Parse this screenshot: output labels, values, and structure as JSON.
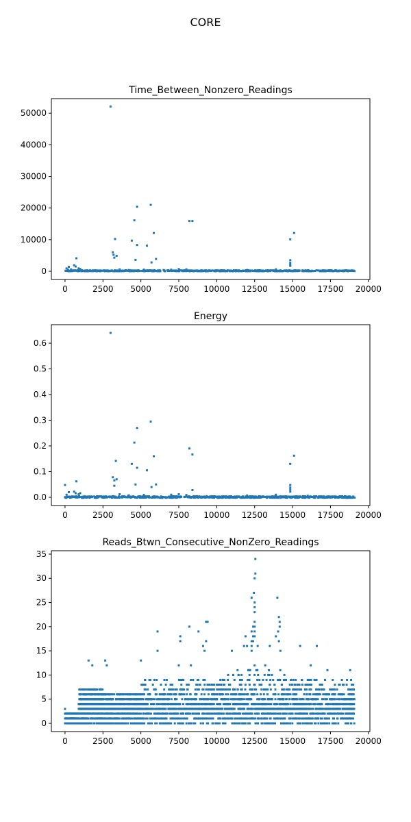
{
  "figure": {
    "suptitle": "CORE"
  },
  "colors": {
    "marker": "#1f77b4",
    "axes": "#000000",
    "background": "#ffffff"
  },
  "chart_data": [
    {
      "type": "scatter",
      "title": "Time_Between_Nonzero_Readings",
      "xlabel": "",
      "ylabel": "",
      "xlim": [
        -900,
        20100
      ],
      "ylim": [
        -2600,
        54600
      ],
      "xticks": [
        0,
        2500,
        5000,
        7500,
        10000,
        12500,
        15000,
        17500,
        20000
      ],
      "yticks": [
        0,
        10000,
        20000,
        30000,
        40000,
        50000
      ],
      "grid": false,
      "legend": null,
      "baseline": {
        "x_start": 0,
        "x_end": 19100,
        "y_min": 0,
        "y_max": 300
      },
      "points": [
        [
          3000,
          52100
        ],
        [
          5650,
          21000
        ],
        [
          4750,
          20400
        ],
        [
          4570,
          16100
        ],
        [
          8200,
          15900
        ],
        [
          8400,
          15900
        ],
        [
          5850,
          12100
        ],
        [
          15100,
          12100
        ],
        [
          14850,
          10100
        ],
        [
          3300,
          10200
        ],
        [
          4400,
          9700
        ],
        [
          5400,
          8100
        ],
        [
          4750,
          8300
        ],
        [
          3150,
          6000
        ],
        [
          3200,
          5200
        ],
        [
          3400,
          4900
        ],
        [
          3250,
          4300
        ],
        [
          6000,
          3900
        ],
        [
          4650,
          3600
        ],
        [
          750,
          4100
        ],
        [
          5700,
          2800
        ],
        [
          14850,
          3500
        ],
        [
          14850,
          2700
        ],
        [
          14850,
          2100
        ],
        [
          14850,
          1700
        ],
        [
          600,
          1900
        ],
        [
          700,
          1500
        ],
        [
          250,
          1400
        ],
        [
          100,
          900
        ],
        [
          900,
          900
        ],
        [
          1000,
          700
        ],
        [
          3600,
          600
        ],
        [
          7000,
          500
        ],
        [
          7500,
          700
        ],
        [
          8000,
          600
        ],
        [
          6500,
          400
        ],
        [
          13900,
          600
        ],
        [
          12000,
          400
        ],
        [
          2000,
          300
        ],
        [
          9000,
          300
        ],
        [
          10500,
          300
        ],
        [
          16000,
          300
        ],
        [
          17500,
          250
        ],
        [
          18500,
          250
        ],
        [
          200,
          500
        ],
        [
          400,
          600
        ],
        [
          5200,
          500
        ],
        [
          4200,
          400
        ]
      ]
    },
    {
      "type": "scatter",
      "title": "Energy",
      "xlabel": "",
      "ylabel": "",
      "xlim": [
        -900,
        20100
      ],
      "ylim": [
        -0.032,
        0.672
      ],
      "xticks": [
        0,
        2500,
        5000,
        7500,
        10000,
        12500,
        15000,
        17500,
        20000
      ],
      "yticks": [
        0.0,
        0.1,
        0.2,
        0.3,
        0.4,
        0.5,
        0.6
      ],
      "tick_labels_y": [
        "0.0",
        "0.1",
        "0.2",
        "0.3",
        "0.4",
        "0.5",
        "0.6"
      ],
      "grid": false,
      "legend": null,
      "baseline": {
        "x_start": 0,
        "x_end": 19100,
        "y_min": -0.002,
        "y_max": 0.004
      },
      "points": [
        [
          3000,
          0.64
        ],
        [
          5650,
          0.295
        ],
        [
          4750,
          0.27
        ],
        [
          4570,
          0.213
        ],
        [
          8200,
          0.19
        ],
        [
          8400,
          0.167
        ],
        [
          15100,
          0.162
        ],
        [
          5850,
          0.16
        ],
        [
          3350,
          0.142
        ],
        [
          4400,
          0.13
        ],
        [
          14850,
          0.13
        ],
        [
          4750,
          0.115
        ],
        [
          5400,
          0.105
        ],
        [
          3150,
          0.078
        ],
        [
          3250,
          0.066
        ],
        [
          3400,
          0.07
        ],
        [
          750,
          0.062
        ],
        [
          0,
          0.048
        ],
        [
          6000,
          0.05
        ],
        [
          4650,
          0.05
        ],
        [
          14850,
          0.048
        ],
        [
          5700,
          0.04
        ],
        [
          3250,
          0.045
        ],
        [
          14850,
          0.038
        ],
        [
          14850,
          0.03
        ],
        [
          8400,
          0.028
        ],
        [
          14850,
          0.022
        ],
        [
          600,
          0.022
        ],
        [
          700,
          0.016
        ],
        [
          250,
          0.02
        ],
        [
          100,
          0.01
        ],
        [
          900,
          0.012
        ],
        [
          1000,
          0.016
        ],
        [
          3600,
          0.012
        ],
        [
          7000,
          0.01
        ],
        [
          7500,
          0.012
        ],
        [
          13900,
          0.01
        ],
        [
          5200,
          0.009
        ],
        [
          4200,
          0.008
        ],
        [
          8000,
          0.009
        ],
        [
          12000,
          0.007
        ],
        [
          16000,
          0.006
        ]
      ]
    },
    {
      "type": "scatter",
      "title": "Reads_Btwn_Consecutive_NonZero_Readings",
      "xlabel": "",
      "ylabel": "",
      "xlim": [
        -900,
        20100
      ],
      "ylim": [
        -1.7,
        35.7
      ],
      "xticks": [
        0,
        2500,
        5000,
        7500,
        10000,
        12500,
        15000,
        17500,
        20000
      ],
      "yticks": [
        0,
        5,
        10,
        15,
        20,
        25,
        30,
        35
      ],
      "grid": false,
      "legend": null,
      "bands": [
        {
          "x_start": 0,
          "x_end": 900,
          "max": 2
        },
        {
          "x_start": 900,
          "x_end": 2500,
          "max": 7
        },
        {
          "x_start": 2500,
          "x_end": 5000,
          "max": 6
        },
        {
          "x_start": 5000,
          "x_end": 10000,
          "max": 9
        },
        {
          "x_start": 10000,
          "x_end": 14500,
          "max": 11
        },
        {
          "x_start": 14500,
          "x_end": 19100,
          "max": 9
        }
      ],
      "points": [
        [
          12550,
          34
        ],
        [
          12550,
          31
        ],
        [
          12500,
          30
        ],
        [
          12450,
          27
        ],
        [
          12300,
          26
        ],
        [
          14000,
          26
        ],
        [
          12500,
          25
        ],
        [
          12500,
          24
        ],
        [
          12500,
          23
        ],
        [
          14100,
          22
        ],
        [
          9300,
          21
        ],
        [
          9400,
          21
        ],
        [
          14150,
          21
        ],
        [
          12500,
          21
        ],
        [
          8200,
          20
        ],
        [
          12400,
          20
        ],
        [
          12500,
          20
        ],
        [
          14150,
          20
        ],
        [
          6100,
          19
        ],
        [
          8800,
          19
        ],
        [
          12300,
          19
        ],
        [
          12500,
          19
        ],
        [
          14050,
          19
        ],
        [
          11900,
          18
        ],
        [
          7600,
          18
        ],
        [
          12400,
          18
        ],
        [
          12500,
          18
        ],
        [
          13900,
          18
        ],
        [
          9300,
          17
        ],
        [
          7600,
          17
        ],
        [
          12300,
          17
        ],
        [
          12400,
          17
        ],
        [
          14100,
          17
        ],
        [
          15500,
          16
        ],
        [
          16600,
          16
        ],
        [
          9100,
          16
        ],
        [
          11800,
          16
        ],
        [
          12000,
          16
        ],
        [
          12300,
          16
        ],
        [
          12700,
          16
        ],
        [
          13500,
          16
        ],
        [
          6100,
          15
        ],
        [
          11000,
          15
        ],
        [
          9200,
          15
        ],
        [
          12300,
          15
        ],
        [
          14200,
          15
        ],
        [
          1550,
          13
        ],
        [
          2650,
          13
        ],
        [
          5000,
          13
        ],
        [
          1800,
          12
        ],
        [
          2750,
          12
        ],
        [
          7500,
          12
        ],
        [
          8300,
          12
        ],
        [
          12500,
          12
        ],
        [
          13200,
          12
        ],
        [
          16200,
          12
        ],
        [
          17300,
          11
        ],
        [
          18800,
          11
        ],
        [
          0,
          3
        ],
        [
          50,
          1
        ],
        [
          150,
          1
        ]
      ]
    }
  ]
}
